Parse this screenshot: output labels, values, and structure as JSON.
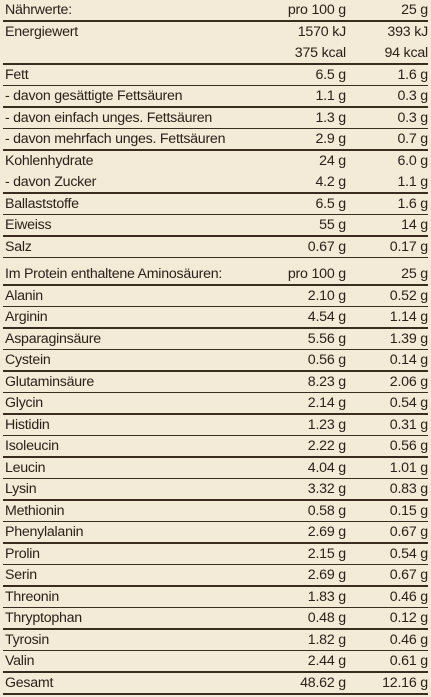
{
  "header": {
    "label": "Nährwerte:",
    "col1": "pro 100 g",
    "col2": "25 g"
  },
  "energy": {
    "label": "Energiewert",
    "kj_col1": "1570 kJ",
    "kj_col2": "393 kJ",
    "kcal_col1": "375 kcal",
    "kcal_col2": "94 kcal"
  },
  "nutrients": [
    {
      "label": "Fett",
      "col1": "6.5 g",
      "col2": "1.6 g"
    },
    {
      "label": "- davon gesättigte Fettsäuren",
      "col1": "1.1 g",
      "col2": "0.3 g"
    },
    {
      "label": "- davon einfach unges. Fettsäuren",
      "col1": "1.3 g",
      "col2": "0.3 g"
    },
    {
      "label": "- davon mehrfach unges. Fettsäuren",
      "col1": "2.9 g",
      "col2": "0.7 g"
    },
    {
      "label": "Kohlenhydrate",
      "col1": "24 g",
      "col2": "6.0 g"
    },
    {
      "label": "- davon Zucker",
      "col1": "4.2 g",
      "col2": "1.1 g"
    },
    {
      "label": "Ballaststoffe",
      "col1": "6.5 g",
      "col2": "1.6 g"
    },
    {
      "label": "Eiweiss",
      "col1": "55 g",
      "col2": "14 g"
    },
    {
      "label": "Salz",
      "col1": "0.67 g",
      "col2": "0.17 g"
    }
  ],
  "amino_header": {
    "label": "Im Protein enthaltene Aminosäuren:",
    "col1": "pro 100 g",
    "col2": "25 g"
  },
  "amino_acids": [
    {
      "label": "Alanin",
      "col1": "2.10 g",
      "col2": "0.52 g"
    },
    {
      "label": "Arginin",
      "col1": "4.54 g",
      "col2": "1.14 g"
    },
    {
      "label": "Asparaginsäure",
      "col1": "5.56 g",
      "col2": "1.39 g"
    },
    {
      "label": "Cystein",
      "col1": "0.56 g",
      "col2": "0.14 g"
    },
    {
      "label": "Glutaminsäure",
      "col1": "8.23 g",
      "col2": "2.06 g"
    },
    {
      "label": "Glycin",
      "col1": "2.14 g",
      "col2": "0.54 g"
    },
    {
      "label": "Histidin",
      "col1": "1.23 g",
      "col2": "0.31 g"
    },
    {
      "label": "Isoleucin",
      "col1": "2.22 g",
      "col2": "0.56 g"
    },
    {
      "label": "Leucin",
      "col1": "4.04 g",
      "col2": "1.01 g"
    },
    {
      "label": "Lysin",
      "col1": "3.32 g",
      "col2": "0.83 g"
    },
    {
      "label": "Methionin",
      "col1": "0.58 g",
      "col2": "0.15 g"
    },
    {
      "label": "Phenylalanin",
      "col1": "2.69 g",
      "col2": "0.67 g"
    },
    {
      "label": "Prolin",
      "col1": "2.15 g",
      "col2": "0.54 g"
    },
    {
      "label": "Serin",
      "col1": "2.69 g",
      "col2": "0.67 g"
    },
    {
      "label": "Threonin",
      "col1": "1.83 g",
      "col2": "0.46 g"
    },
    {
      "label": "Thryptophan",
      "col1": "0.48 g",
      "col2": "0.12 g"
    },
    {
      "label": "Tyrosin",
      "col1": "1.82 g",
      "col2": "0.46 g"
    },
    {
      "label": "Valin",
      "col1": "2.44 g",
      "col2": "0.61 g"
    }
  ],
  "total": {
    "label": "Gesamt",
    "col1": "48.62 g",
    "col2": "12.16 g"
  }
}
